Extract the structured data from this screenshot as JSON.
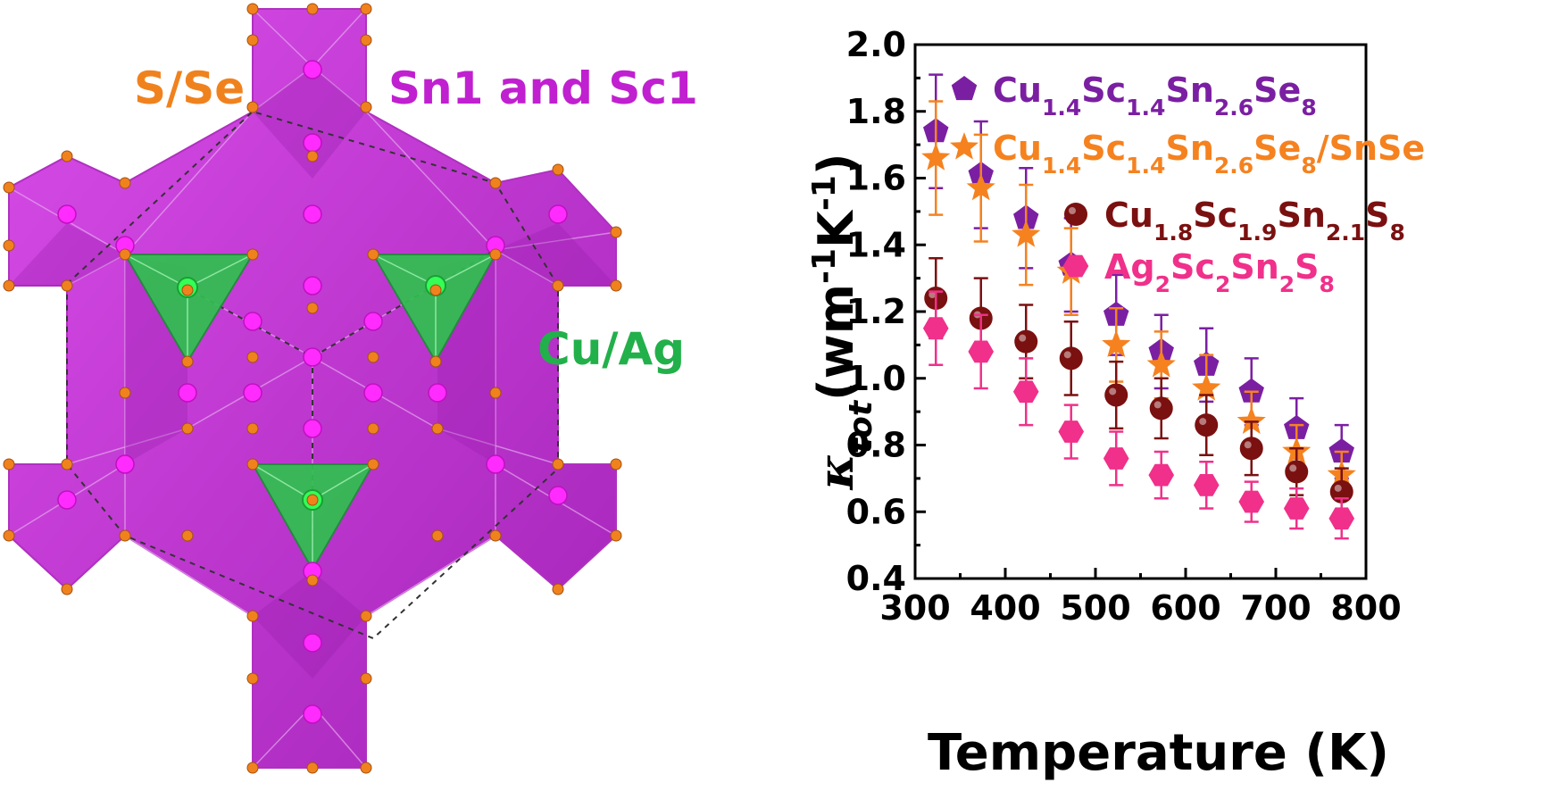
{
  "structure": {
    "labels": {
      "anion": "S/Se",
      "octahedral": "Sn1 and Sc1",
      "tetrahedral": "Cu/Ag"
    },
    "colors": {
      "anion": "#f0821e",
      "octahedral": "#cc33dd",
      "tetrahedral": "#22bb44"
    }
  },
  "chart_data": {
    "type": "scatter",
    "xlabel": "Temperature (K)",
    "ylabel": "κtot(wm-1K-1)",
    "xlim": [
      300,
      800
    ],
    "ylim": [
      0.4,
      2.0
    ],
    "xticks": [
      300,
      400,
      500,
      600,
      700,
      800
    ],
    "yticks": [
      0.4,
      0.6,
      0.8,
      1.0,
      1.2,
      1.4,
      1.6,
      1.8,
      2.0
    ],
    "xtick_labels": [
      "300",
      "400",
      "500",
      "600",
      "700",
      "800"
    ],
    "ytick_labels": [
      "0.4",
      "0.6",
      "0.8",
      "1.0",
      "1.2",
      "1.4",
      "1.6",
      "1.8",
      "2.0"
    ],
    "grid": false,
    "legend_position": "top-right",
    "series": [
      {
        "name": "Cu1.4Sc1.4Sn2.6Se8",
        "color": "#7b1fa2",
        "marker": "pentagon",
        "x": [
          323,
          373,
          423,
          473,
          523,
          573,
          623,
          673,
          723,
          773
        ],
        "y": [
          1.74,
          1.61,
          1.48,
          1.34,
          1.19,
          1.08,
          1.04,
          0.96,
          0.85,
          0.78
        ],
        "err": [
          0.17,
          0.16,
          0.15,
          0.14,
          0.12,
          0.11,
          0.11,
          0.1,
          0.09,
          0.08
        ]
      },
      {
        "name": "Cu1.4Sc1.4Sn2.6Se8/SnSe",
        "color": "#f5821f",
        "marker": "star",
        "x": [
          323,
          373,
          423,
          473,
          523,
          573,
          623,
          673,
          723,
          773
        ],
        "y": [
          1.66,
          1.57,
          1.43,
          1.32,
          1.1,
          1.04,
          0.97,
          0.87,
          0.78,
          0.71
        ],
        "err": [
          0.17,
          0.16,
          0.15,
          0.13,
          0.11,
          0.1,
          0.1,
          0.09,
          0.08,
          0.07
        ]
      },
      {
        "name": "Cu1.8Sc1.9Sn2.1S8",
        "color": "#7a1010",
        "marker": "sphere",
        "x": [
          323,
          373,
          423,
          473,
          523,
          573,
          623,
          673,
          723,
          773
        ],
        "y": [
          1.24,
          1.18,
          1.11,
          1.06,
          0.95,
          0.91,
          0.86,
          0.79,
          0.72,
          0.66
        ],
        "err": [
          0.12,
          0.12,
          0.11,
          0.11,
          0.1,
          0.09,
          0.09,
          0.08,
          0.07,
          0.07
        ]
      },
      {
        "name": "Ag2Sc2Sn2S8",
        "color": "#f0308a",
        "marker": "hexagon",
        "x": [
          323,
          373,
          423,
          473,
          523,
          573,
          623,
          673,
          723,
          773
        ],
        "y": [
          1.15,
          1.08,
          0.96,
          0.84,
          0.76,
          0.71,
          0.68,
          0.63,
          0.61,
          0.58
        ],
        "err": [
          0.11,
          0.11,
          0.1,
          0.08,
          0.08,
          0.07,
          0.07,
          0.06,
          0.06,
          0.06
        ]
      }
    ],
    "legend": [
      {
        "parts": [
          [
            "Cu",
            ""
          ],
          [
            "1.4",
            "sub"
          ],
          [
            "Sc",
            ""
          ],
          [
            "1.4",
            "sub"
          ],
          [
            "Sn",
            ""
          ],
          [
            "2.6",
            "sub"
          ],
          [
            "Se",
            ""
          ],
          [
            "8",
            "sub"
          ]
        ]
      },
      {
        "parts": [
          [
            "Cu",
            ""
          ],
          [
            "1.4",
            "sub"
          ],
          [
            "Sc",
            ""
          ],
          [
            "1.4",
            "sub"
          ],
          [
            "Sn",
            ""
          ],
          [
            "2.6",
            "sub"
          ],
          [
            "Se",
            ""
          ],
          [
            "8",
            "sub"
          ],
          [
            "/SnSe",
            ""
          ]
        ]
      },
      {
        "parts": [
          [
            "Cu",
            ""
          ],
          [
            "1.8",
            "sub"
          ],
          [
            "Sc",
            ""
          ],
          [
            "1.9",
            "sub"
          ],
          [
            "Sn",
            ""
          ],
          [
            "2.1",
            "sub"
          ],
          [
            "S",
            ""
          ],
          [
            "8",
            "sub"
          ]
        ]
      },
      {
        "parts": [
          [
            "Ag",
            ""
          ],
          [
            "2",
            "sub"
          ],
          [
            "Sc",
            ""
          ],
          [
            "2",
            "sub"
          ],
          [
            "Sn",
            ""
          ],
          [
            "2",
            "sub"
          ],
          [
            "S",
            ""
          ],
          [
            "8",
            "sub"
          ]
        ]
      }
    ],
    "ylabel_parts": [
      [
        "κ",
        ""
      ],
      [
        "tot",
        "sub"
      ],
      [
        "(wm",
        ""
      ],
      [
        "-1",
        "sup"
      ],
      [
        "K",
        ""
      ],
      [
        "-1",
        "sup"
      ],
      [
        ")",
        ""
      ]
    ]
  }
}
